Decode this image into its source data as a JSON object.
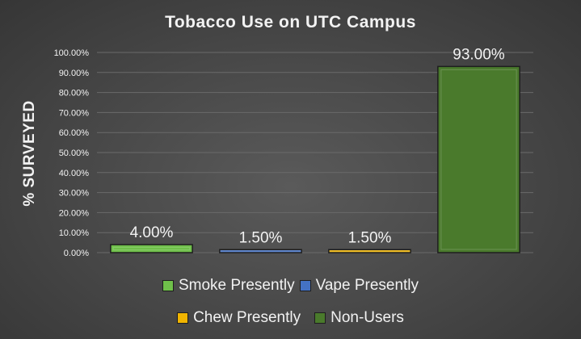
{
  "chart_data": {
    "type": "bar",
    "title": "Tobacco Use on UTC Campus",
    "ylabel": "% SURVEYED",
    "xlabel": "",
    "ylim": [
      0,
      100
    ],
    "yticks": [
      "0.00%",
      "10.00%",
      "20.00%",
      "30.00%",
      "40.00%",
      "50.00%",
      "60.00%",
      "70.00%",
      "80.00%",
      "90.00%",
      "100.00%"
    ],
    "categories": [
      "Smoke Presently",
      "Vape Presently",
      "Chew Presently",
      "Non-Users"
    ],
    "values": [
      4.0,
      1.5,
      1.5,
      93.0
    ],
    "data_labels": [
      "4.00%",
      "1.50%",
      "1.50%",
      "93.00%"
    ],
    "colors": [
      "#6fc04a",
      "#4472c4",
      "#f0b400",
      "#4a7a2c"
    ],
    "grid": true,
    "legend_position": "bottom"
  }
}
